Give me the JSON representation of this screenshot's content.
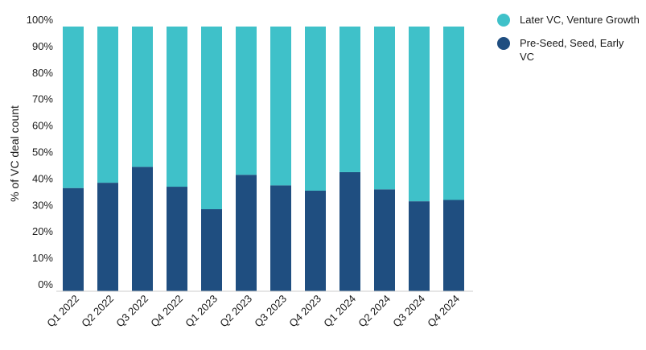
{
  "chart_data": {
    "type": "bar",
    "stacked": true,
    "categories": [
      "Q1 2022",
      "Q2 2022",
      "Q3 2022",
      "Q4 2022",
      "Q1 2023",
      "Q2 2023",
      "Q3 2023",
      "Q4 2023",
      "Q1 2024",
      "Q2 2024",
      "Q3 2024",
      "Q4 2024"
    ],
    "series": [
      {
        "name": "Pre-Seed, Seed, Early VC",
        "color": "#1f4e80",
        "values": [
          39,
          41,
          47,
          39.5,
          31,
          44,
          40,
          38,
          45,
          38.5,
          34,
          34.5
        ]
      },
      {
        "name": "Later VC, Venture Growth",
        "color": "#3fc1c9",
        "values": [
          61,
          59,
          53,
          60.5,
          69,
          56,
          60,
          62,
          55,
          61.5,
          66,
          65.5
        ]
      }
    ],
    "ylabel": "% of VC deal count",
    "ylim": [
      0,
      100
    ],
    "yticks": [
      "0%",
      "10%",
      "20%",
      "30%",
      "40%",
      "50%",
      "60%",
      "70%",
      "80%",
      "90%",
      "100%"
    ],
    "legend_position": "top-right",
    "grid": false
  }
}
